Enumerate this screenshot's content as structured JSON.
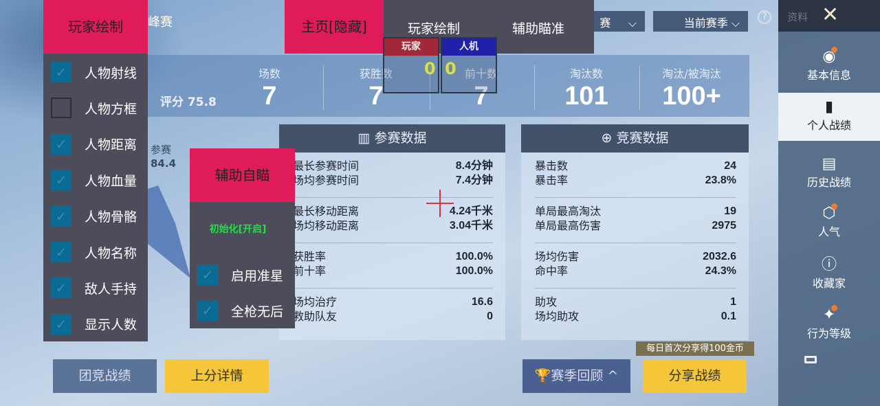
{
  "header": {
    "partial_title": "峰赛",
    "mode_dropdown": "赛",
    "season_dropdown": "当前赛季",
    "help_icon": "question-circle-icon"
  },
  "sidebar": {
    "title": "资料",
    "close_icon": "close-x-icon",
    "items": [
      {
        "label": "基本信息",
        "icon": "profile-icon",
        "badge": true
      },
      {
        "label": "个人战绩",
        "icon": "chart-doc-icon",
        "selected": true
      },
      {
        "label": "历史战绩",
        "icon": "history-doc-icon"
      },
      {
        "label": "人气",
        "icon": "popularity-icon",
        "badge": true
      },
      {
        "label": "收藏家",
        "icon": "collector-icon"
      },
      {
        "label": "行为等级",
        "icon": "behavior-icon",
        "badge": true
      }
    ],
    "menu_icon": "menu-icon"
  },
  "stats": {
    "score_label": "评分 75.8",
    "items": [
      {
        "label": "场数",
        "value": "7"
      },
      {
        "label": "获胜数",
        "value": "7"
      },
      {
        "label": "前十数",
        "value": "7"
      },
      {
        "label": "淘汰数",
        "value": "101"
      },
      {
        "label": "淘汰/被淘汰",
        "value": "100+"
      }
    ]
  },
  "radar": {
    "label": "参赛",
    "value": "84.4"
  },
  "participation": {
    "title": "参赛数据",
    "groups": [
      [
        [
          "最长参赛时间",
          "8.4分钟"
        ],
        [
          "场均参赛时间",
          "7.4分钟"
        ]
      ],
      [
        [
          "最长移动距离",
          "4.24千米"
        ],
        [
          "场均移动距离",
          "3.04千米"
        ]
      ],
      [
        [
          "获胜率",
          "100.0%"
        ],
        [
          "前十率",
          "100.0%"
        ]
      ],
      [
        [
          "场均治疗",
          "16.6"
        ],
        [
          "救助队友",
          "0"
        ]
      ]
    ]
  },
  "competition": {
    "title": "竞赛数据",
    "groups": [
      [
        [
          "暴击数",
          "24"
        ],
        [
          "暴击率",
          "23.8%"
        ]
      ],
      [
        [
          "单局最高淘汰",
          "19"
        ],
        [
          "单局最高伤害",
          "2975"
        ]
      ],
      [
        [
          "场均伤害",
          "2032.6"
        ],
        [
          "命中率",
          "24.3%"
        ]
      ],
      [
        [
          "助攻",
          "1"
        ],
        [
          "场均助攻",
          "0.1"
        ]
      ]
    ]
  },
  "buttons": {
    "team": "团竞战绩",
    "rank": "上分详情",
    "season_review": "赛季回顾",
    "share": "分享战绩",
    "share_tip": "每日首次分享得100金币"
  },
  "overlay": {
    "menu_title": "玩家绘制",
    "menu_items": [
      {
        "label": "人物射线",
        "checked": true
      },
      {
        "label": "人物方框",
        "checked": false
      },
      {
        "label": "人物距离",
        "checked": true
      },
      {
        "label": "人物血量",
        "checked": true
      },
      {
        "label": "人物骨骼",
        "checked": true
      },
      {
        "label": "人物名称",
        "checked": true
      },
      {
        "label": "敌人手持",
        "checked": true
      },
      {
        "label": "显示人数",
        "checked": true
      }
    ],
    "tab_home": "主页[隐藏]",
    "tab_draw": "玩家绘制",
    "tab_aim": "辅助瞄准",
    "player_box": {
      "label": "玩家",
      "count": "0"
    },
    "bot_box": {
      "label": "人机",
      "count": "0"
    },
    "aim_title": "辅助自瞄",
    "aim_status": "初始化[开启]",
    "aim_items": [
      {
        "label": "启用准星",
        "checked": true
      },
      {
        "label": "全枪无后",
        "checked": true
      }
    ],
    "colors": {
      "accent": "#df1b5a",
      "panel": "#4d4c5a",
      "checkbox": "#0b6b95",
      "status_green": "#22dd44",
      "crosshair": "#e03040"
    }
  }
}
